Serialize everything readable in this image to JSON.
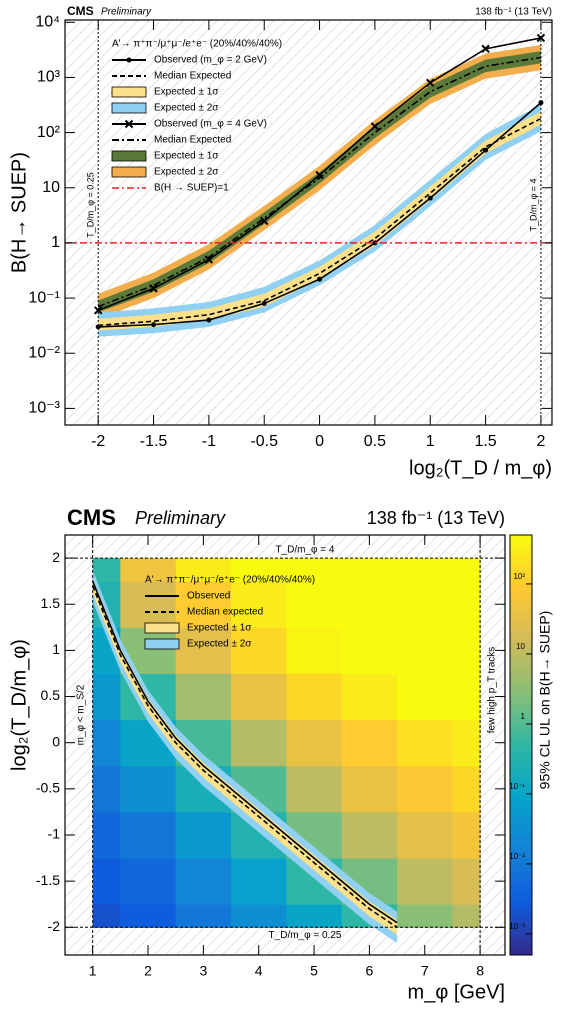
{
  "chart_data": [
    {
      "type": "line",
      "experiment": "CMS",
      "status": "Preliminary",
      "lumi": "138 fb⁻¹ (13 TeV)",
      "xlabel": "log₂(T_D / m_φ)",
      "ylabel": "B(H→ SUEP)",
      "legend_title": "A'→ π⁺π⁻/μ⁺μ⁻/e⁺e⁻ (20%/40%/40%)",
      "log_y": true,
      "xlim": [
        -2.3,
        2.1
      ],
      "ylim": [
        0.0005,
        11000
      ],
      "xticks": [
        -2,
        -1.5,
        -1,
        -0.5,
        0,
        0.5,
        1,
        1.5,
        2
      ],
      "yticks": [
        {
          "value": 0.001,
          "label": "10⁻³"
        },
        {
          "value": 0.01,
          "label": "10⁻²"
        },
        {
          "value": 0.1,
          "label": "10⁻¹"
        },
        1,
        10,
        {
          "value": 100,
          "label": "10²"
        },
        {
          "value": 1000,
          "label": "10³"
        },
        {
          "value": 10000,
          "label": "10⁴"
        }
      ],
      "x": [
        -2,
        -1.5,
        -1,
        -0.5,
        0,
        0.5,
        1,
        1.5,
        2
      ],
      "series": [
        {
          "name": "Observed (m_φ = 2 GeV)",
          "kind": "line",
          "style": "solid",
          "marker": "dot",
          "color": "#000000",
          "values": [
            0.03,
            0.033,
            0.04,
            0.08,
            0.22,
            1.0,
            6.5,
            48,
            350
          ]
        },
        {
          "name": "Median Expected",
          "kind": "line",
          "style": "dashed",
          "color": "#000000",
          "values": [
            0.032,
            0.038,
            0.05,
            0.09,
            0.28,
            1.2,
            8,
            55,
            180
          ]
        },
        {
          "name": "Expected ± 1σ",
          "kind": "band",
          "color": "#fce08a",
          "lower": [
            0.026,
            0.03,
            0.04,
            0.07,
            0.22,
            0.9,
            6,
            42,
            140
          ],
          "upper": [
            0.042,
            0.05,
            0.065,
            0.12,
            0.37,
            1.6,
            10.5,
            72,
            240
          ]
        },
        {
          "name": "Expected ± 2σ",
          "kind": "band",
          "color": "#8fd0f3",
          "lower": [
            0.02,
            0.023,
            0.03,
            0.055,
            0.17,
            0.7,
            4.6,
            32,
            105
          ],
          "upper": [
            0.055,
            0.065,
            0.085,
            0.16,
            0.48,
            2.1,
            14,
            95,
            320
          ]
        },
        {
          "name": "Observed (m_φ = 4 GeV)",
          "kind": "line",
          "style": "solid",
          "marker": "x",
          "color": "#000000",
          "values": [
            0.06,
            0.15,
            0.5,
            2.5,
            17,
            130,
            800,
            3300,
            5200
          ]
        },
        {
          "name": "Median Expected",
          "kind": "line",
          "style": "dashdot",
          "color": "#000000",
          "values": [
            0.07,
            0.17,
            0.55,
            2.8,
            15,
            100,
            550,
            1600,
            2300
          ]
        },
        {
          "name": "Expected ± 1σ",
          "kind": "band",
          "color": "#5b7a3a",
          "lower": [
            0.055,
            0.13,
            0.43,
            2.2,
            12,
            80,
            430,
            1250,
            1800
          ],
          "upper": [
            0.09,
            0.22,
            0.72,
            3.6,
            19,
            130,
            720,
            2100,
            3000
          ]
        },
        {
          "name": "Expected ± 2σ",
          "kind": "band",
          "color": "#f2ad4c",
          "lower": [
            0.042,
            0.1,
            0.33,
            1.7,
            9,
            60,
            330,
            950,
            1350
          ],
          "upper": [
            0.12,
            0.29,
            0.95,
            4.7,
            25,
            170,
            940,
            2700,
            3900
          ]
        }
      ],
      "draw_order": [
        7,
        6,
        3,
        2,
        1,
        5,
        0,
        4
      ],
      "reference_line": {
        "name": "B(H → SUEP)=1",
        "value": 1,
        "color": "#e8222a"
      },
      "annotations": [
        {
          "x": -2,
          "label": "T_D/m_φ = 0.25"
        },
        {
          "x": 2,
          "label": "T_D/m_φ = 4"
        }
      ]
    },
    {
      "type": "heatmap",
      "experiment": "CMS",
      "status": "Preliminary",
      "lumi": "138 fb⁻¹ (13 TeV)",
      "xlabel": "m_φ [GeV]",
      "ylabel": "log₂(T_D/m_φ)",
      "zlabel": "95% CL UL on B(H→ SUEP)",
      "legend_title": "A'→ π⁺π⁻/μ⁺μ⁻/e⁺e⁻ (20%/40%/40%)",
      "xlim": [
        0.5,
        8.45
      ],
      "ylim": [
        -2.3,
        2.25
      ],
      "zlim": [
        0.0005,
        500
      ],
      "xticks": [
        1,
        2,
        3,
        4,
        5,
        6,
        7,
        8
      ],
      "yticks": [
        -2,
        -1.5,
        -1,
        -0.5,
        0,
        0.5,
        1,
        1.5,
        2
      ],
      "zticks": [
        {
          "value": 0.001,
          "label": "10⁻³"
        },
        {
          "value": 0.01,
          "label": "10⁻²"
        },
        {
          "value": 0.1,
          "label": "10⁻¹"
        },
        1,
        10,
        {
          "value": 100,
          "label": "10²"
        }
      ],
      "x_edges": [
        1,
        1.5,
        2.5,
        3.5,
        4.5,
        5.5,
        6.5,
        7.5,
        8
      ],
      "y_edges": [
        -2,
        -1.75,
        -1.25,
        -0.75,
        -0.25,
        0.25,
        0.75,
        1.25,
        1.75,
        2
      ],
      "values": [
        [
          0.002,
          0.003,
          0.01,
          0.03,
          0.1,
          0.5,
          3,
          8
        ],
        [
          0.003,
          0.005,
          0.02,
          0.08,
          0.5,
          2,
          10,
          20
        ],
        [
          0.005,
          0.01,
          0.05,
          0.3,
          2,
          10,
          30,
          60
        ],
        [
          0.01,
          0.03,
          0.2,
          1,
          10,
          40,
          80,
          150
        ],
        [
          0.02,
          0.1,
          0.8,
          8,
          40,
          100,
          200,
          300
        ],
        [
          0.05,
          0.5,
          5,
          40,
          150,
          300,
          500,
          500
        ],
        [
          0.1,
          3,
          30,
          150,
          400,
          500,
          500,
          500
        ],
        [
          0.3,
          20,
          100,
          300,
          500,
          500,
          500,
          500
        ],
        [
          0.5,
          50,
          300,
          500,
          500,
          500,
          500,
          500
        ]
      ],
      "x": [
        1,
        1.5,
        2,
        2.5,
        3,
        3.5,
        4,
        4.5,
        5,
        5.5,
        6,
        6.5
      ],
      "series": [
        {
          "name": "Observed",
          "kind": "line",
          "style": "solid",
          "color": "#000000",
          "values": [
            1.75,
            1.0,
            0.45,
            0.05,
            -0.25,
            -0.5,
            -0.75,
            -1.0,
            -1.25,
            -1.5,
            -1.75,
            -1.95
          ]
        },
        {
          "name": "Median expected",
          "kind": "line",
          "style": "dashed",
          "color": "#000000",
          "values": [
            1.7,
            0.95,
            0.4,
            0,
            -0.3,
            -0.55,
            -0.8,
            -1.05,
            -1.3,
            -1.55,
            -1.8,
            -2.0
          ]
        },
        {
          "name": "Expected ± 1σ",
          "kind": "band",
          "color": "#fce08a",
          "lower": [
            1.62,
            0.87,
            0.32,
            -0.08,
            -0.38,
            -0.63,
            -0.88,
            -1.13,
            -1.38,
            -1.63,
            -1.88,
            -2.08
          ],
          "upper": [
            1.78,
            1.03,
            0.48,
            0.08,
            -0.22,
            -0.47,
            -0.72,
            -0.97,
            -1.22,
            -1.47,
            -1.72,
            -1.92
          ]
        },
        {
          "name": "Expected ± 2σ",
          "kind": "band",
          "color": "#8fd0f3",
          "lower": [
            1.53,
            0.78,
            0.23,
            -0.17,
            -0.47,
            -0.72,
            -0.97,
            -1.22,
            -1.47,
            -1.72,
            -1.97,
            -2.17
          ],
          "upper": [
            1.87,
            1.12,
            0.57,
            0.17,
            -0.13,
            -0.38,
            -0.63,
            -0.88,
            -1.13,
            -1.38,
            -1.63,
            -1.83
          ]
        }
      ],
      "draw_order": [
        3,
        2,
        1,
        0
      ],
      "annotations": [
        {
          "axis": "y",
          "value": 2,
          "label": "T_D/m_φ = 4"
        },
        {
          "axis": "y",
          "value": -2,
          "label": "T_D/m_φ = 0.25"
        },
        {
          "axis": "x",
          "value": 1,
          "label": "m_φ < m_S/2"
        },
        {
          "axis": "x",
          "value": 8,
          "label": "few high p_T tracks"
        }
      ]
    }
  ]
}
